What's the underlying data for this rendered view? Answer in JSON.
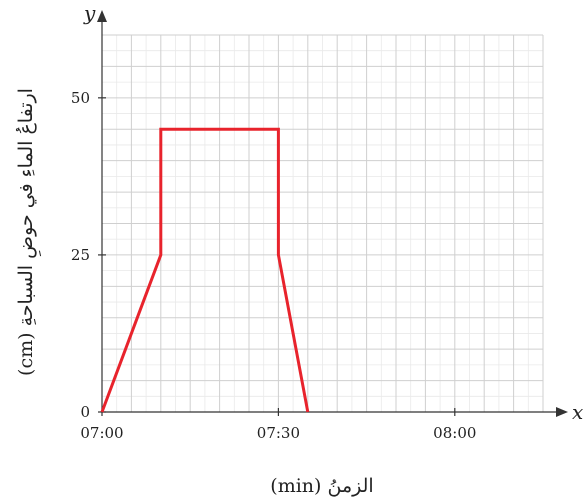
{
  "chart_data": {
    "type": "line",
    "xlabel": "الزمنُ (min)",
    "ylabel": "ارتفاعُ الماءِ في حوضِ السباحةِ (cm)",
    "x_axis_letter": "x",
    "y_axis_letter": "y",
    "x_unit": "minutes after 07:00",
    "xlim": [
      0,
      75
    ],
    "ylim": [
      0,
      60
    ],
    "x_ticks": [
      {
        "value": 0,
        "label": "07:00"
      },
      {
        "value": 30,
        "label": "07:30"
      },
      {
        "value": 60,
        "label": "08:00"
      }
    ],
    "y_ticks": [
      {
        "value": 0,
        "label": "0"
      },
      {
        "value": 25,
        "label": "25"
      },
      {
        "value": 50,
        "label": "50"
      }
    ],
    "grid": true,
    "series": [
      {
        "color": "#e8232c",
        "points": [
          {
            "x": 0,
            "y": 0
          },
          {
            "x": 10,
            "y": 25
          },
          {
            "x": 10,
            "y": 45
          },
          {
            "x": 30,
            "y": 45
          },
          {
            "x": 30,
            "y": 25
          },
          {
            "x": 35,
            "y": 0
          }
        ]
      }
    ]
  }
}
